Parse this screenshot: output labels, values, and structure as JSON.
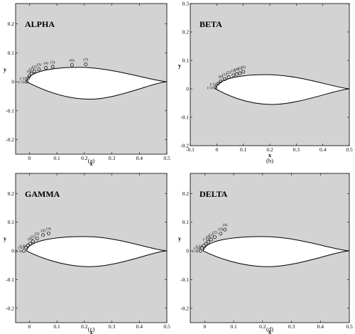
{
  "chart_data": [
    {
      "type": "scatter",
      "title": "ALPHA",
      "caption": "(a)",
      "xlabel": "x",
      "ylabel": "y",
      "xlim": [
        -0.05,
        0.5
      ],
      "ylim": [
        -0.25,
        0.27
      ],
      "xticks": [
        "0",
        "0.1",
        "0.2",
        "0.3",
        "0.4",
        "0.5"
      ],
      "xtick_values": [
        0,
        0.1,
        0.2,
        0.3,
        0.4,
        0.5
      ],
      "yticks": [
        "-0.2",
        "-0.1",
        "0",
        "0.1",
        "0.2"
      ],
      "ytick_values": [
        -0.2,
        -0.1,
        0,
        0.1,
        0.2
      ],
      "points": [
        {
          "label": "(-2)",
          "x": -0.01,
          "y": 0.0
        },
        {
          "label": "(-1)",
          "x": -0.005,
          "y": 0.012
        },
        {
          "label": "(0)",
          "x": 0.0,
          "y": 0.02
        },
        {
          "label": "(1)",
          "x": 0.008,
          "y": 0.028
        },
        {
          "label": "(2)",
          "x": 0.018,
          "y": 0.036
        },
        {
          "label": "(3)",
          "x": 0.035,
          "y": 0.043
        },
        {
          "label": "(4)",
          "x": 0.06,
          "y": 0.048
        },
        {
          "label": "(5)",
          "x": 0.085,
          "y": 0.052
        },
        {
          "label": "(6)",
          "x": 0.155,
          "y": 0.058
        },
        {
          "label": "(7)",
          "x": 0.205,
          "y": 0.06
        }
      ],
      "airfoil": {
        "nose_x": -0.01,
        "upper_peak_x": 0.18,
        "upper_peak_y": 0.05,
        "lower_peak_x": 0.22,
        "lower_peak_y": -0.06
      }
    },
    {
      "type": "scatter",
      "title": "BETA",
      "caption": "(b)",
      "xlabel": "x",
      "ylabel": "y",
      "xlim": [
        -0.1,
        0.5
      ],
      "ylim": [
        -0.2,
        0.3
      ],
      "xticks": [
        "-0.1",
        "0",
        "0.1",
        "0.2",
        "0.3",
        "0.4",
        "0.5"
      ],
      "xtick_values": [
        -0.1,
        0,
        0.1,
        0.2,
        0.3,
        0.4,
        0.5
      ],
      "yticks": [
        "-0.2",
        "-0.1",
        "0",
        "0.1",
        "0.2",
        "0.3"
      ],
      "ytick_values": [
        -0.2,
        -0.1,
        0,
        0.1,
        0.2,
        0.3
      ],
      "points": [
        {
          "label": "(-2)",
          "x": -0.005,
          "y": 0.005
        },
        {
          "label": "(-1)",
          "x": 0.005,
          "y": 0.018
        },
        {
          "label": "(0)",
          "x": 0.015,
          "y": 0.026
        },
        {
          "label": "(1)",
          "x": 0.03,
          "y": 0.034
        },
        {
          "label": "(2)",
          "x": 0.045,
          "y": 0.041
        },
        {
          "label": "(3)",
          "x": 0.063,
          "y": 0.048
        },
        {
          "label": "(4)",
          "x": 0.075,
          "y": 0.052
        },
        {
          "label": "(5)",
          "x": 0.087,
          "y": 0.055
        },
        {
          "label": "(6)",
          "x": 0.1,
          "y": 0.06
        }
      ],
      "airfoil": {
        "nose_x": -0.005,
        "upper_peak_x": 0.19,
        "upper_peak_y": 0.05,
        "lower_peak_x": 0.21,
        "lower_peak_y": -0.055
      }
    },
    {
      "type": "scatter",
      "title": "GAMMA",
      "caption": "(c)",
      "xlabel": "x",
      "ylabel": "y",
      "xlim": [
        -0.05,
        0.5
      ],
      "ylim": [
        -0.25,
        0.27
      ],
      "xticks": [
        "0",
        "0.1",
        "0.2",
        "0.3",
        "0.4",
        "0.5"
      ],
      "xtick_values": [
        0,
        0.1,
        0.2,
        0.3,
        0.4,
        0.5
      ],
      "yticks": [
        "-0.2",
        "-0.1",
        "0",
        "0.1",
        "0.2"
      ],
      "ytick_values": [
        -0.2,
        -0.1,
        0,
        0.1,
        0.2
      ],
      "points": [
        {
          "label": "(-3)",
          "x": -0.02,
          "y": 0.0
        },
        {
          "label": "(-2)",
          "x": -0.012,
          "y": 0.012
        },
        {
          "label": "(-1)",
          "x": -0.005,
          "y": 0.019
        },
        {
          "label": "(0)",
          "x": 0.003,
          "y": 0.025
        },
        {
          "label": "(1)",
          "x": 0.013,
          "y": 0.033
        },
        {
          "label": "(2)",
          "x": 0.028,
          "y": 0.043
        },
        {
          "label": "(3)",
          "x": 0.05,
          "y": 0.055
        },
        {
          "label": "(4)",
          "x": 0.07,
          "y": 0.061
        }
      ],
      "airfoil": {
        "nose_x": -0.01,
        "upper_peak_x": 0.2,
        "upper_peak_y": 0.05,
        "lower_peak_x": 0.22,
        "lower_peak_y": -0.055
      }
    },
    {
      "type": "scatter",
      "title": "DELTA",
      "caption": "(d)",
      "xlabel": "x",
      "ylabel": "y",
      "xlim": [
        -0.05,
        0.5
      ],
      "ylim": [
        -0.25,
        0.27
      ],
      "xticks": [
        "0",
        "0.1",
        "0.2",
        "0.3",
        "0.4",
        "0.5"
      ],
      "xtick_values": [
        0,
        0.1,
        0.2,
        0.3,
        0.4,
        0.5
      ],
      "yticks": [
        "-0.2",
        "-0.1",
        "0",
        "0.1",
        "0.2"
      ],
      "ytick_values": [
        -0.2,
        -0.1,
        0,
        0.1,
        0.2
      ],
      "points": [
        {
          "label": "(-4)",
          "x": -0.015,
          "y": 0.0
        },
        {
          "label": "(-3)",
          "x": -0.01,
          "y": 0.01
        },
        {
          "label": "(-2)",
          "x": -0.003,
          "y": 0.018
        },
        {
          "label": "(-1)",
          "x": 0.004,
          "y": 0.025
        },
        {
          "label": "(0)",
          "x": 0.012,
          "y": 0.032
        },
        {
          "label": "(1)",
          "x": 0.022,
          "y": 0.04
        },
        {
          "label": "(2)",
          "x": 0.035,
          "y": 0.048
        },
        {
          "label": "(3)",
          "x": 0.055,
          "y": 0.06
        },
        {
          "label": "(4)",
          "x": 0.07,
          "y": 0.074
        }
      ],
      "airfoil": {
        "nose_x": -0.005,
        "upper_peak_x": 0.2,
        "upper_peak_y": 0.05,
        "lower_peak_x": 0.22,
        "lower_peak_y": -0.055
      }
    }
  ]
}
